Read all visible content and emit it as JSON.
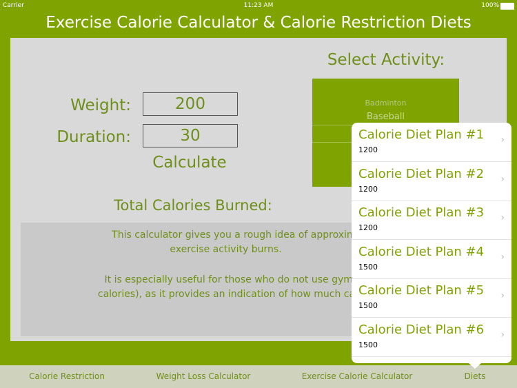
{
  "status": {
    "carrier": "Carrier",
    "time": "11:23 AM",
    "battery": "100%"
  },
  "title": "Exercise Calorie Calculator & Calorie Restriction Diets",
  "form": {
    "weight_label": "Weight:",
    "weight_value": "200",
    "duration_label": "Duration:",
    "duration_value": "30",
    "calculate": "Calculate",
    "total_label": "Total Calories Burned:"
  },
  "activity": {
    "label": "Select Activity:",
    "options": [
      "Badminton",
      "Baseball"
    ]
  },
  "description": [
    "This calculator gives you a rough idea of approximately how m",
    "exercise activity burns.",
    "It is especially useful for those who do not use gym equipment (w",
    "calories), as it provides an indication of how much calories"
  ],
  "diet_plans": [
    {
      "title": "Calorie Diet Plan #1",
      "subtitle": "1200"
    },
    {
      "title": "Calorie Diet Plan #2",
      "subtitle": "1200"
    },
    {
      "title": "Calorie Diet Plan #3",
      "subtitle": "1200"
    },
    {
      "title": "Calorie Diet Plan #4",
      "subtitle": "1500"
    },
    {
      "title": "Calorie Diet Plan #5",
      "subtitle": "1500"
    },
    {
      "title": "Calorie Diet Plan #6",
      "subtitle": "1500"
    }
  ],
  "tabs": [
    "Calorie Restriction",
    "Weight Loss Calculator",
    "Exercise Calorie Calculator",
    "Diets"
  ]
}
